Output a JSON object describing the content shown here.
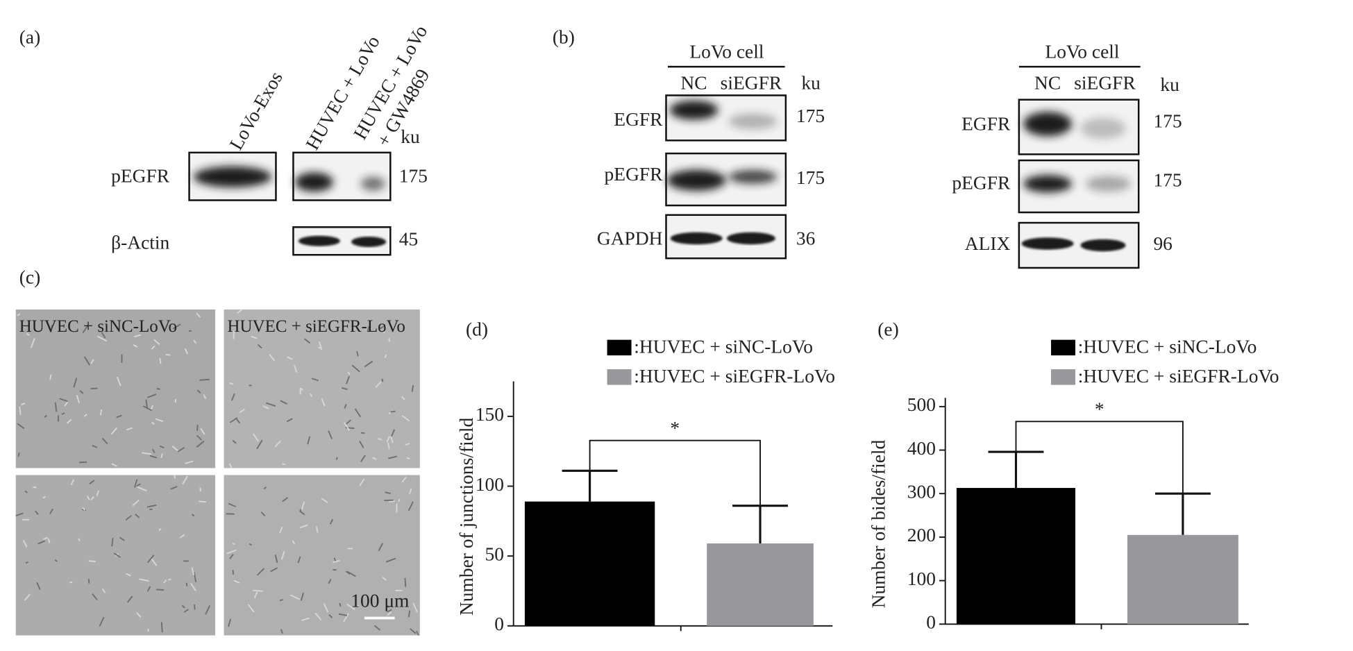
{
  "panels": {
    "a": {
      "label": "(a)",
      "lanes": [
        "LoVo-Exos",
        "HUVEC + LoVo",
        "HUVEC + LoVo",
        "+ GW4869"
      ],
      "unit": "ku",
      "rows": [
        "pEGFR",
        "β-Actin"
      ],
      "sizes": [
        "175",
        "45"
      ]
    },
    "b": {
      "label": "(b)",
      "left": {
        "group": "LoVo cell",
        "lanes": [
          "NC",
          "siEGFR"
        ],
        "unit": "ku",
        "rows": [
          "EGFR",
          "pEGFR",
          "GAPDH"
        ],
        "sizes": [
          "175",
          "175",
          "36"
        ]
      },
      "right": {
        "group": "LoVo cell",
        "lanes": [
          "NC",
          "siEGFR"
        ],
        "unit": "ku",
        "rows": [
          "EGFR",
          "pEGFR",
          "ALIX"
        ],
        "sizes": [
          "175",
          "175",
          "96"
        ]
      }
    },
    "c": {
      "label": "(c)",
      "columns": [
        "HUVEC + siNC-LoVo",
        "HUVEC + siEGFR-LoVo"
      ],
      "scale_bar": "100 μm"
    }
  },
  "chart_data": [
    {
      "type": "bar",
      "label": "(d)",
      "y_label": "Number of junctions/field",
      "annotation": "*",
      "ylim": [
        0,
        175
      ],
      "yticks": [
        0,
        50,
        100,
        150
      ],
      "series": [
        {
          "name": ":HUVEC + siNC-LoVo",
          "color": "#000000",
          "values": [
            89
          ],
          "errors": [
            22
          ]
        },
        {
          "name": ":HUVEC + siEGFR-LoVo",
          "color": "#97979c",
          "values": [
            59
          ],
          "errors": [
            27
          ]
        }
      ]
    },
    {
      "type": "bar",
      "label": "(e)",
      "y_label": "Number of bides/field",
      "annotation": "*",
      "ylim": [
        0,
        520
      ],
      "yticks": [
        0,
        100,
        200,
        300,
        400,
        500
      ],
      "series": [
        {
          "name": ":HUVEC + siNC-LoVo",
          "color": "#000000",
          "values": [
            313
          ],
          "errors": [
            83
          ]
        },
        {
          "name": ":HUVEC + siEGFR-LoVo",
          "color": "#97979c",
          "values": [
            205
          ],
          "errors": [
            95
          ]
        }
      ]
    }
  ]
}
